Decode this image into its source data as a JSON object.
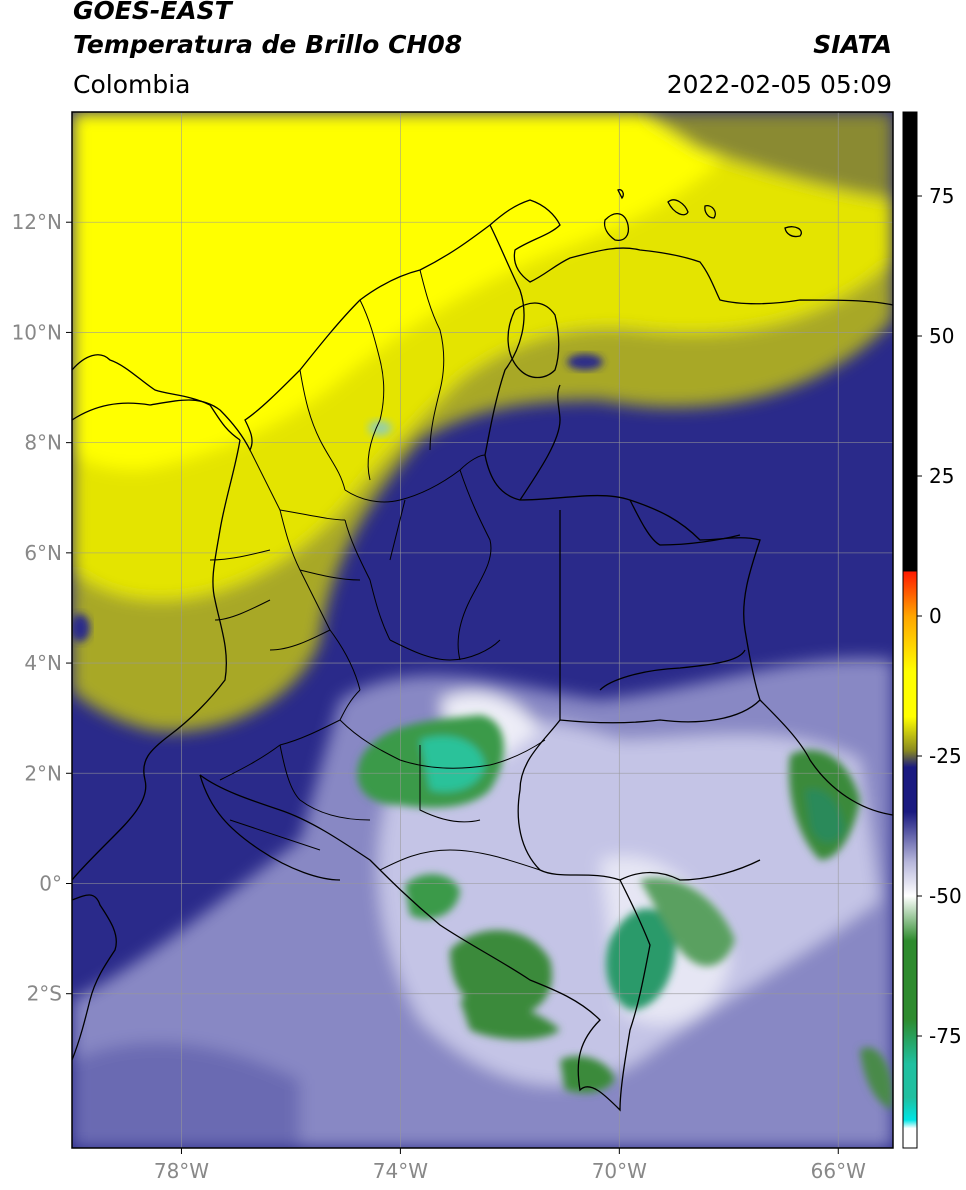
{
  "header": {
    "satellite": "GOES-EAST",
    "product": "Temperatura de Brillo CH08",
    "region": "Colombia",
    "source": "SIATA",
    "datetime": "2022-02-05 05:09"
  },
  "map": {
    "lon_range": [
      -80,
      -65
    ],
    "lat_range": [
      -4.8,
      14.0
    ],
    "lon_ticks": [
      {
        "value": -78,
        "label": "78°W"
      },
      {
        "value": -74,
        "label": "74°W"
      },
      {
        "value": -70,
        "label": "70°W"
      },
      {
        "value": -66,
        "label": "66°W"
      }
    ],
    "lat_ticks": [
      {
        "value": 12,
        "label": "12°N"
      },
      {
        "value": 10,
        "label": "10°N"
      },
      {
        "value": 8,
        "label": "8°N"
      },
      {
        "value": 6,
        "label": "6°N"
      },
      {
        "value": 4,
        "label": "4°N"
      },
      {
        "value": 2,
        "label": "2°N"
      },
      {
        "value": 0,
        "label": "0°"
      },
      {
        "value": -2,
        "label": "2°S"
      }
    ],
    "grid": true
  },
  "colorbar": {
    "range": [
      -95,
      90
    ],
    "ticks": [
      {
        "value": 75,
        "label": "75"
      },
      {
        "value": 50,
        "label": "50"
      },
      {
        "value": 25,
        "label": "25"
      },
      {
        "value": 0,
        "label": "0"
      },
      {
        "value": -25,
        "label": "-25"
      },
      {
        "value": -50,
        "label": "-50"
      },
      {
        "value": -75,
        "label": "-75"
      }
    ],
    "colors": {
      "black": "#000000",
      "red": "#ff1a00",
      "orange": "#ffa500",
      "yellow": "#ffff00",
      "olive": "#8a8a20",
      "navy": "#1a1a80",
      "lavender": "#b8b8dc",
      "white": "#ffffff",
      "green": "#2e8b2e",
      "teal": "#20c0a0",
      "cyan": "#00e5e5"
    }
  }
}
